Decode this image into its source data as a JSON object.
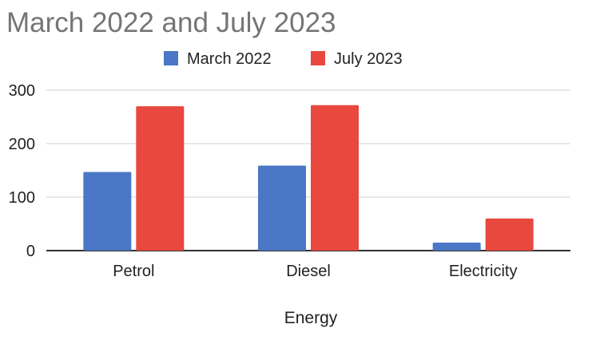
{
  "chart_data": {
    "type": "bar",
    "title": "March 2022 and July 2023",
    "xlabel": "Energy",
    "ylabel": "",
    "categories": [
      "Petrol",
      "Diesel",
      "Electricity"
    ],
    "series": [
      {
        "name": "March 2022",
        "values": [
          147,
          159,
          15
        ],
        "color": "#4a77c6"
      },
      {
        "name": "July 2023",
        "values": [
          270,
          272,
          60
        ],
        "color": "#e8483e"
      }
    ],
    "ylim": [
      0,
      300
    ],
    "yticks": [
      0,
      100,
      200,
      300
    ],
    "grid": true,
    "legend_position": "top-center"
  }
}
